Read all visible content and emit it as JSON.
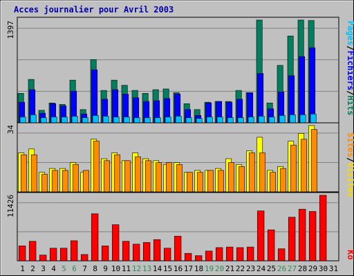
{
  "title": "Acces journalier pour Avril 2003",
  "colors": {
    "background": "#c0c0c0",
    "hits": "#007f5e",
    "files": "#0000ff",
    "pages": "#00bfff",
    "visits": "#ffff00",
    "sites": "#ff8c00",
    "kbytes": "#ff0000",
    "weekend_label": "#2e8b57",
    "grid": "#808080"
  },
  "chart_data": [
    {
      "type": "bar",
      "name": "hits-files-pages",
      "ylabel_max": "1397",
      "ylim": [
        0,
        1397
      ],
      "legend": [
        "Pages",
        "Fichiers",
        "Hits"
      ],
      "categories": [
        "1",
        "2",
        "3",
        "4",
        "5",
        "6",
        "7",
        "8",
        "9",
        "10",
        "11",
        "12",
        "13",
        "14",
        "15",
        "16",
        "17",
        "18",
        "19",
        "20",
        "21",
        "22",
        "23",
        "24",
        "25",
        "26",
        "27",
        "28",
        "29",
        "30",
        "31"
      ],
      "weekend_days": [
        "5",
        "6",
        "12",
        "13",
        "19",
        "20",
        "26",
        "27"
      ],
      "series": [
        {
          "name": "Hits",
          "values": [
            400,
            590,
            170,
            270,
            250,
            580,
            180,
            860,
            440,
            580,
            510,
            440,
            400,
            450,
            460,
            410,
            260,
            180,
            280,
            290,
            290,
            440,
            410,
            1397,
            270,
            780,
            1180,
            1397,
            1390,
            0,
            0
          ]
        },
        {
          "name": "Fichiers",
          "values": [
            280,
            450,
            130,
            260,
            230,
            430,
            120,
            720,
            320,
            450,
            390,
            340,
            290,
            300,
            330,
            390,
            180,
            100,
            270,
            290,
            280,
            320,
            410,
            670,
            190,
            420,
            640,
            900,
            1020,
            0,
            0
          ]
        },
        {
          "name": "Pages",
          "values": [
            80,
            110,
            70,
            80,
            80,
            90,
            70,
            100,
            90,
            80,
            80,
            70,
            70,
            70,
            80,
            90,
            70,
            60,
            80,
            80,
            70,
            70,
            80,
            90,
            80,
            100,
            110,
            110,
            120,
            0,
            0
          ]
        }
      ],
      "note_values": [
        400,
        590,
        170,
        270,
        250,
        580,
        180,
        860,
        440,
        580,
        510,
        440,
        400,
        450,
        460,
        410,
        260,
        180,
        280,
        290,
        290,
        440,
        410,
        1397,
        270,
        780,
        1180,
        1397,
        1390,
        0,
        0
      ]
    },
    {
      "type": "bar",
      "name": "visits-sites",
      "ylabel_max": "34",
      "ylim": [
        0,
        34
      ],
      "legend": [
        "Visites",
        "Sites"
      ],
      "series": [
        {
          "name": "Visites",
          "values": [
            20,
            22,
            10,
            12,
            12,
            15,
            10,
            27,
            17,
            20,
            16,
            20,
            17,
            16,
            14,
            15,
            10,
            11,
            11,
            12,
            17,
            14,
            21,
            28,
            11,
            13,
            26,
            30,
            34,
            0,
            0
          ]
        },
        {
          "name": "Sites",
          "values": [
            19,
            19,
            9,
            11,
            11,
            14,
            11,
            26,
            16,
            19,
            16,
            18,
            16,
            15,
            15,
            14,
            10,
            10,
            11,
            11,
            15,
            13,
            20,
            20,
            10,
            12,
            24,
            27,
            32,
            0,
            0
          ]
        }
      ]
    },
    {
      "type": "bar",
      "name": "kbytes",
      "ylabel_max": "11426",
      "ylim": [
        0,
        11426
      ],
      "legend": [
        "Ko"
      ],
      "series": [
        {
          "name": "Ko",
          "values": [
            2600,
            3400,
            1000,
            2200,
            2200,
            3500,
            1100,
            8200,
            2600,
            6300,
            3400,
            2900,
            3200,
            3700,
            2200,
            4300,
            1300,
            900,
            1700,
            2300,
            2400,
            2300,
            2400,
            8700,
            5400,
            2100,
            7600,
            9000,
            8600,
            11426,
            0
          ]
        }
      ]
    }
  ]
}
